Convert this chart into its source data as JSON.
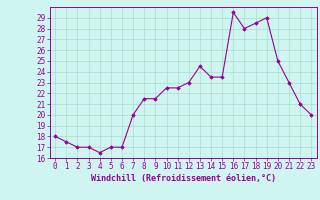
{
  "x": [
    0,
    1,
    2,
    3,
    4,
    5,
    6,
    7,
    8,
    9,
    10,
    11,
    12,
    13,
    14,
    15,
    16,
    17,
    18,
    19,
    20,
    21,
    22,
    23
  ],
  "y": [
    18.0,
    17.5,
    17.0,
    17.0,
    16.5,
    17.0,
    17.0,
    20.0,
    21.5,
    21.5,
    22.5,
    22.5,
    23.0,
    24.5,
    23.5,
    23.5,
    29.5,
    28.0,
    28.5,
    29.0,
    25.0,
    23.0,
    21.0,
    20.0
  ],
  "line_color": "#990099",
  "marker": "D",
  "markersize": 1.8,
  "linewidth": 0.8,
  "bg_color": "#cef5f0",
  "grid_color": "#aaddcc",
  "xlabel": "Windchill (Refroidissement éolien,°C)",
  "xlabel_color": "#990099",
  "xlabel_fontsize": 6.0,
  "tick_color": "#990099",
  "tick_fontsize": 5.5,
  "ylim": [
    16,
    30
  ],
  "yticks": [
    16,
    17,
    18,
    19,
    20,
    21,
    22,
    23,
    24,
    25,
    26,
    27,
    28,
    29
  ],
  "xlim": [
    -0.5,
    23.5
  ],
  "xticks": [
    0,
    1,
    2,
    3,
    4,
    5,
    6,
    7,
    8,
    9,
    10,
    11,
    12,
    13,
    14,
    15,
    16,
    17,
    18,
    19,
    20,
    21,
    22,
    23
  ]
}
